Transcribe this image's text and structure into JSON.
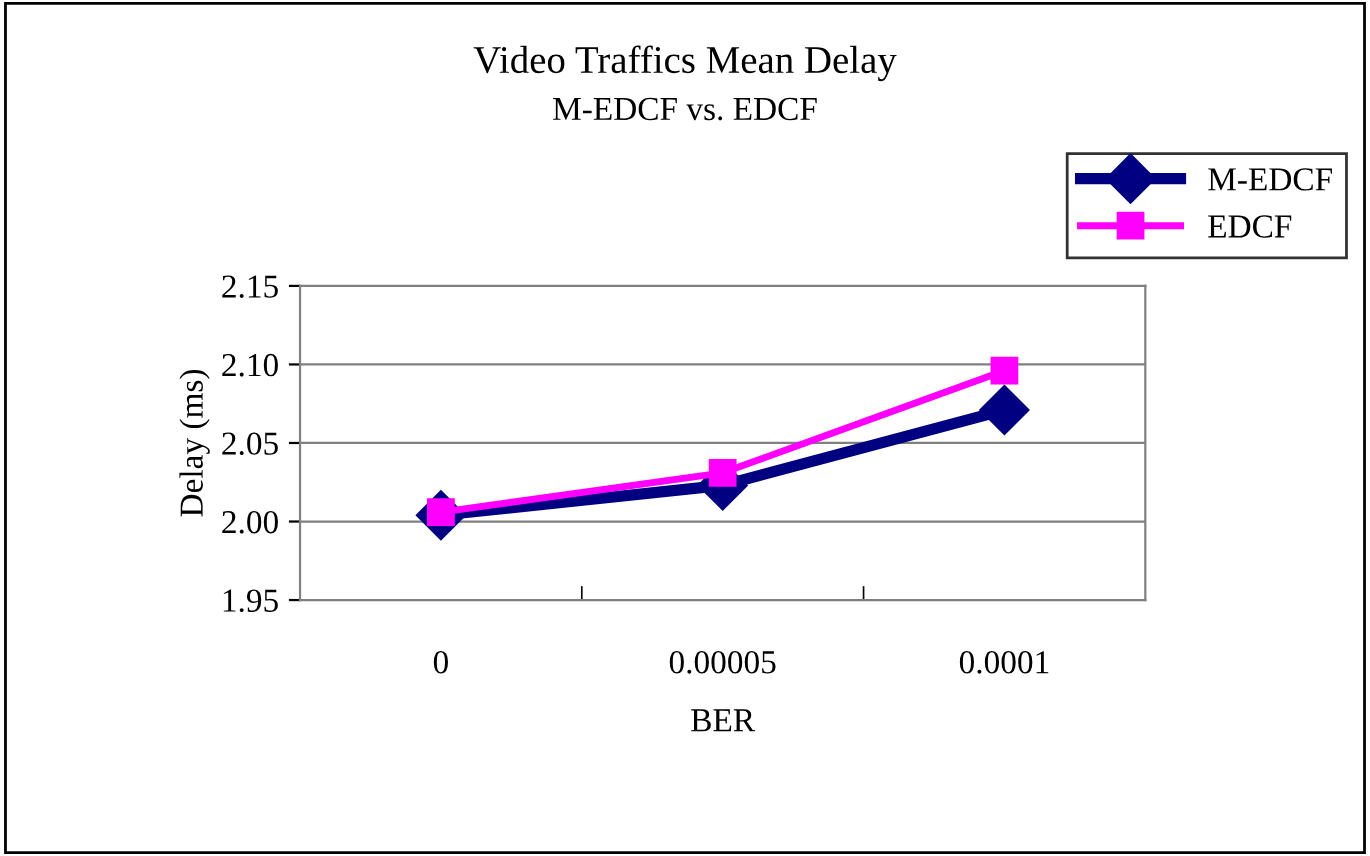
{
  "chart_data": {
    "type": "line",
    "title": "Video Traffics Mean Delay",
    "subtitle": "M-EDCF vs. EDCF",
    "xlabel": "BER",
    "ylabel": "Delay (ms)",
    "categories": [
      "0",
      "0.00005",
      "0.0001"
    ],
    "series": [
      {
        "name": "M-EDCF",
        "color": "#000080",
        "values": [
          2.004,
          2.023,
          2.071
        ],
        "marker": "diamond"
      },
      {
        "name": "EDCF",
        "color": "#ff00ff",
        "values": [
          2.006,
          2.031,
          2.096
        ],
        "marker": "square"
      }
    ],
    "ylim": [
      1.95,
      2.15
    ],
    "yticks": [
      {
        "value": 1.95,
        "label": "1.95"
      },
      {
        "value": 2.0,
        "label": "2.00"
      },
      {
        "value": 2.05,
        "label": "2.05"
      },
      {
        "value": 2.1,
        "label": "2.10"
      },
      {
        "value": 2.15,
        "label": "2.15"
      }
    ],
    "grid": "y",
    "legend": "top right",
    "line_style": "solid"
  }
}
